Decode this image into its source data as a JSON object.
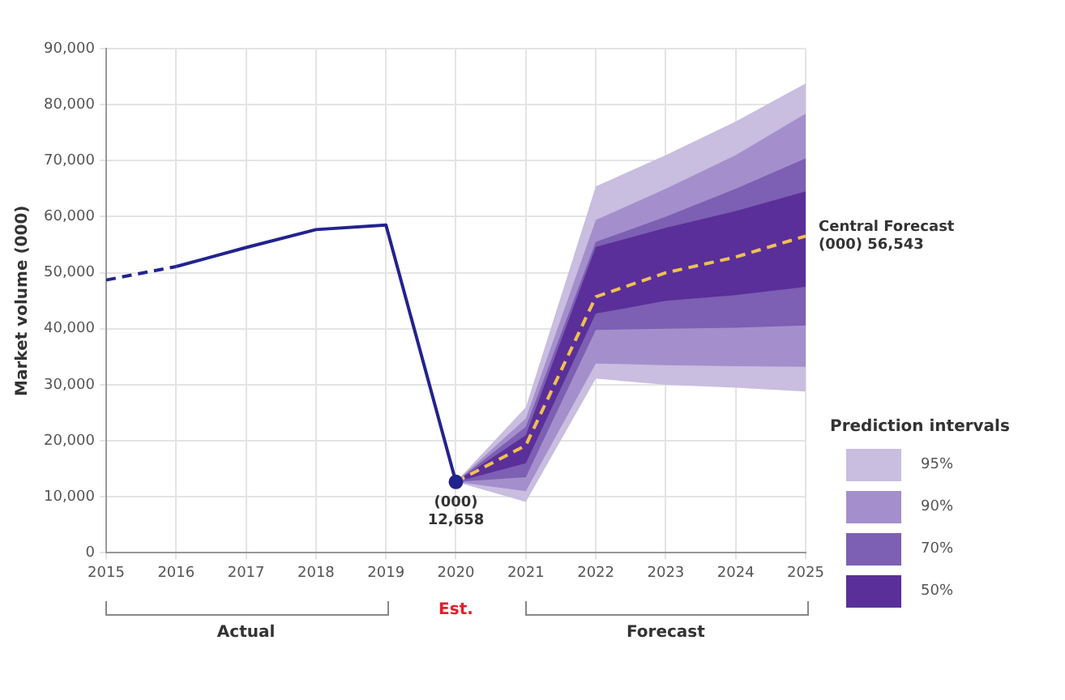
{
  "chart_data": {
    "type": "line",
    "ylabel": "Market volume (000)",
    "xlim": [
      2015,
      2025
    ],
    "xticks": [
      2015,
      2016,
      2017,
      2018,
      2019,
      2020,
      2021,
      2022,
      2023,
      2024,
      2025
    ],
    "ylim": [
      0,
      90000
    ],
    "yticks": [
      0,
      {
        "value": 10000,
        "label": "10,000"
      },
      {
        "value": 20000,
        "label": "20,000"
      },
      {
        "value": 30000,
        "label": "30,000"
      },
      {
        "value": 40000,
        "label": "40,000"
      },
      {
        "value": 50000,
        "label": "50,000"
      },
      {
        "value": 60000,
        "label": "60,000"
      },
      {
        "value": 70000,
        "label": "70,000"
      },
      {
        "value": 80000,
        "label": "80,000"
      },
      {
        "value": 90000,
        "label": "90,000"
      }
    ],
    "grid": true,
    "legend": "right",
    "legend_title": "Prediction intervals",
    "series": [
      {
        "name": "95%",
        "color": "#c9bde0",
        "x": [
          2020,
          2021,
          2022,
          2023,
          2024,
          2025
        ],
        "values": [
          null,
          null,
          null,
          null,
          null,
          null
        ],
        "lower": [
          12658,
          9100,
          31100,
          30000,
          29500,
          28800
        ],
        "upper": [
          12658,
          26000,
          65400,
          71000,
          77000,
          83800
        ],
        "marker": "none"
      },
      {
        "name": "90%",
        "color": "#a48fcc",
        "x": [
          2020,
          2021,
          2022,
          2023,
          2024,
          2025
        ],
        "values": [
          null,
          null,
          null,
          null,
          null,
          null
        ],
        "lower": [
          12658,
          11000,
          33800,
          33500,
          33300,
          33200
        ],
        "upper": [
          12658,
          24000,
          59400,
          65000,
          71000,
          78400
        ],
        "marker": "none"
      },
      {
        "name": "70%",
        "color": "#7d5fb3",
        "x": [
          2020,
          2021,
          2022,
          2023,
          2024,
          2025
        ],
        "values": [
          null,
          null,
          null,
          null,
          null,
          null
        ],
        "lower": [
          12658,
          13500,
          39800,
          40000,
          40200,
          40600
        ],
        "upper": [
          12658,
          22500,
          55500,
          60000,
          65000,
          70400
        ],
        "marker": "none"
      },
      {
        "name": "50%",
        "color": "#5a2f99",
        "x": [
          2020,
          2021,
          2022,
          2023,
          2024,
          2025
        ],
        "values": [
          null,
          null,
          null,
          null,
          null,
          null
        ],
        "lower": [
          12658,
          16000,
          42700,
          45000,
          46000,
          47500
        ],
        "upper": [
          12658,
          21000,
          54600,
          58000,
          61000,
          64500
        ],
        "marker": "none"
      },
      {
        "color": "#23238e",
        "x": [
          2015,
          2016
        ],
        "values": [
          48700,
          51100
        ],
        "line_style": "dashed",
        "marker": "none"
      },
      {
        "color": "#23238e",
        "x": [
          2016,
          2017,
          2018,
          2019,
          2020
        ],
        "values": [
          51100,
          54500,
          57700,
          58500,
          12658
        ],
        "line_style": "solid",
        "marker": "none"
      },
      {
        "type": "scatter",
        "color": "#23238e",
        "x": [
          2020
        ],
        "values": [
          12658
        ],
        "marker": "circle"
      },
      {
        "color": "#f0c050",
        "x": [
          2020,
          2021,
          2022,
          2023,
          2024,
          2025
        ],
        "values": [
          12658,
          19200,
          45700,
          50000,
          52800,
          56543
        ],
        "line_style": "dashed",
        "marker": "none"
      }
    ],
    "annotations": [
      {
        "text": "(000) 12,658",
        "x": 2020,
        "y": 12658
      },
      {
        "text": "Central Forecast (000) 56,543",
        "x": 2025,
        "y": 56543
      },
      "Actual",
      "Est.",
      "Forecast"
    ]
  }
}
